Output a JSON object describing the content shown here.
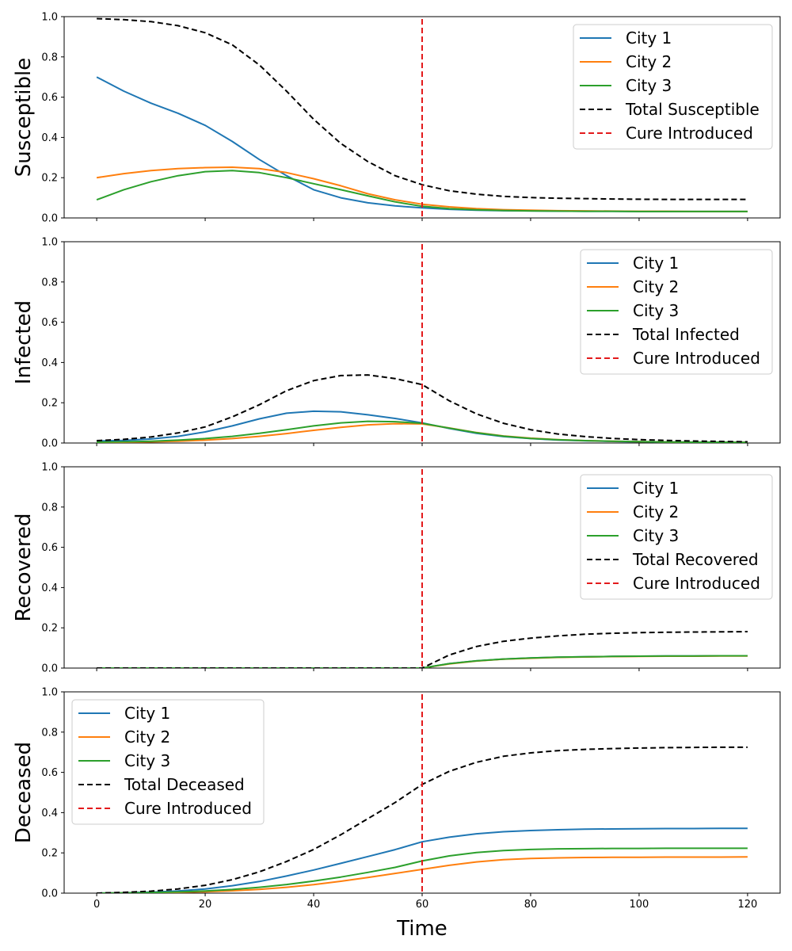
{
  "figure": {
    "xlabel": "Time"
  },
  "chart_data": [
    {
      "type": "line",
      "ylabel": "Susceptible",
      "xlim": [
        -6,
        126
      ],
      "ylim": [
        0,
        1
      ],
      "xticks": [
        0,
        20,
        40,
        60,
        80,
        100,
        120
      ],
      "yticks": [
        0.0,
        0.2,
        0.4,
        0.6,
        0.8,
        1.0
      ],
      "show_x_tick_labels": false,
      "legend_position": "top-right",
      "x": [
        0,
        5,
        10,
        15,
        20,
        25,
        30,
        35,
        40,
        45,
        50,
        55,
        60,
        65,
        70,
        75,
        80,
        85,
        90,
        95,
        100,
        105,
        110,
        115,
        120
      ],
      "series": [
        {
          "name": "City 1",
          "color": "#1f77b4",
          "dash": false,
          "values": [
            0.7,
            0.63,
            0.57,
            0.52,
            0.46,
            0.38,
            0.29,
            0.21,
            0.14,
            0.1,
            0.075,
            0.06,
            0.05,
            0.043,
            0.038,
            0.036,
            0.035,
            0.034,
            0.033,
            0.033,
            0.032,
            0.032,
            0.032,
            0.032,
            0.032
          ]
        },
        {
          "name": "City 2",
          "color": "#ff7f0e",
          "dash": false,
          "values": [
            0.2,
            0.22,
            0.235,
            0.245,
            0.25,
            0.252,
            0.245,
            0.225,
            0.195,
            0.16,
            0.12,
            0.09,
            0.068,
            0.055,
            0.046,
            0.041,
            0.038,
            0.036,
            0.035,
            0.034,
            0.033,
            0.033,
            0.032,
            0.032,
            0.032
          ]
        },
        {
          "name": "City 3",
          "color": "#2ca02c",
          "dash": false,
          "values": [
            0.09,
            0.14,
            0.18,
            0.21,
            0.23,
            0.235,
            0.225,
            0.2,
            0.17,
            0.14,
            0.11,
            0.08,
            0.058,
            0.046,
            0.04,
            0.037,
            0.035,
            0.034,
            0.033,
            0.033,
            0.032,
            0.032,
            0.032,
            0.032,
            0.032
          ]
        },
        {
          "name": "Total Susceptible",
          "color": "#000000",
          "dash": true,
          "values": [
            0.99,
            0.985,
            0.975,
            0.955,
            0.92,
            0.86,
            0.76,
            0.63,
            0.49,
            0.37,
            0.28,
            0.21,
            0.165,
            0.135,
            0.118,
            0.107,
            0.101,
            0.098,
            0.096,
            0.094,
            0.093,
            0.092,
            0.092,
            0.092,
            0.092
          ]
        },
        {
          "name": "Cure Introduced",
          "color": "#e31a1c",
          "dash": true,
          "vline_x": 60
        }
      ]
    },
    {
      "type": "line",
      "ylabel": "Infected",
      "xlim": [
        -6,
        126
      ],
      "ylim": [
        0,
        1
      ],
      "xticks": [
        0,
        20,
        40,
        60,
        80,
        100,
        120
      ],
      "yticks": [
        0.0,
        0.2,
        0.4,
        0.6,
        0.8,
        1.0
      ],
      "show_x_tick_labels": false,
      "legend_position": "top-right",
      "x": [
        0,
        5,
        10,
        15,
        20,
        25,
        30,
        35,
        40,
        45,
        50,
        55,
        60,
        65,
        70,
        75,
        80,
        85,
        90,
        95,
        100,
        105,
        110,
        115,
        120
      ],
      "series": [
        {
          "name": "City 1",
          "color": "#1f77b4",
          "dash": false,
          "values": [
            0.01,
            0.013,
            0.02,
            0.033,
            0.055,
            0.085,
            0.12,
            0.148,
            0.158,
            0.155,
            0.14,
            0.122,
            0.1,
            0.072,
            0.048,
            0.032,
            0.022,
            0.015,
            0.011,
            0.008,
            0.006,
            0.005,
            0.004,
            0.004,
            0.003
          ]
        },
        {
          "name": "City 2",
          "color": "#ff7f0e",
          "dash": false,
          "values": [
            0.003,
            0.004,
            0.006,
            0.009,
            0.014,
            0.022,
            0.033,
            0.047,
            0.063,
            0.078,
            0.09,
            0.096,
            0.095,
            0.075,
            0.052,
            0.035,
            0.024,
            0.017,
            0.012,
            0.009,
            0.007,
            0.005,
            0.004,
            0.004,
            0.003
          ]
        },
        {
          "name": "City 3",
          "color": "#2ca02c",
          "dash": false,
          "values": [
            0.004,
            0.006,
            0.009,
            0.014,
            0.022,
            0.033,
            0.048,
            0.066,
            0.085,
            0.1,
            0.108,
            0.106,
            0.098,
            0.074,
            0.051,
            0.034,
            0.023,
            0.016,
            0.012,
            0.009,
            0.007,
            0.005,
            0.004,
            0.004,
            0.003
          ]
        },
        {
          "name": "Total Infected",
          "color": "#000000",
          "dash": true,
          "values": [
            0.012,
            0.018,
            0.03,
            0.05,
            0.08,
            0.13,
            0.19,
            0.26,
            0.31,
            0.335,
            0.338,
            0.32,
            0.29,
            0.21,
            0.145,
            0.098,
            0.066,
            0.045,
            0.032,
            0.023,
            0.017,
            0.013,
            0.01,
            0.008,
            0.006
          ]
        },
        {
          "name": "Cure Introduced",
          "color": "#e31a1c",
          "dash": true,
          "vline_x": 60
        }
      ]
    },
    {
      "type": "line",
      "ylabel": "Recovered",
      "xlim": [
        -6,
        126
      ],
      "ylim": [
        0,
        1
      ],
      "xticks": [
        0,
        20,
        40,
        60,
        80,
        100,
        120
      ],
      "yticks": [
        0.0,
        0.2,
        0.4,
        0.6,
        0.8,
        1.0
      ],
      "show_x_tick_labels": false,
      "legend_position": "top-right",
      "x": [
        0,
        5,
        10,
        15,
        20,
        25,
        30,
        35,
        40,
        45,
        50,
        55,
        60,
        65,
        70,
        75,
        80,
        85,
        90,
        95,
        100,
        105,
        110,
        115,
        120
      ],
      "series": [
        {
          "name": "City 1",
          "color": "#1f77b4",
          "dash": false,
          "values": [
            0,
            0,
            0,
            0,
            0,
            0,
            0,
            0,
            0,
            0,
            0,
            0,
            0,
            0.022,
            0.036,
            0.045,
            0.05,
            0.054,
            0.056,
            0.058,
            0.059,
            0.06,
            0.06,
            0.061,
            0.061
          ]
        },
        {
          "name": "City 2",
          "color": "#ff7f0e",
          "dash": false,
          "values": [
            0,
            0,
            0,
            0,
            0,
            0,
            0,
            0,
            0,
            0,
            0,
            0,
            0,
            0.021,
            0.035,
            0.044,
            0.049,
            0.053,
            0.055,
            0.057,
            0.058,
            0.059,
            0.059,
            0.06,
            0.06
          ]
        },
        {
          "name": "City 3",
          "color": "#2ca02c",
          "dash": false,
          "values": [
            0,
            0,
            0,
            0,
            0,
            0,
            0,
            0,
            0,
            0,
            0,
            0,
            0,
            0.022,
            0.036,
            0.045,
            0.05,
            0.054,
            0.056,
            0.058,
            0.059,
            0.06,
            0.06,
            0.061,
            0.061
          ]
        },
        {
          "name": "Total Recovered",
          "color": "#000000",
          "dash": true,
          "values": [
            0,
            0,
            0,
            0,
            0,
            0,
            0,
            0,
            0,
            0,
            0,
            0,
            0,
            0.065,
            0.107,
            0.133,
            0.149,
            0.16,
            0.168,
            0.173,
            0.176,
            0.178,
            0.179,
            0.18,
            0.181
          ]
        },
        {
          "name": "Cure Introduced",
          "color": "#e31a1c",
          "dash": true,
          "vline_x": 60
        }
      ]
    },
    {
      "type": "line",
      "ylabel": "Deceased",
      "xlim": [
        -6,
        126
      ],
      "ylim": [
        0,
        1
      ],
      "xticks": [
        0,
        20,
        40,
        60,
        80,
        100,
        120
      ],
      "yticks": [
        0.0,
        0.2,
        0.4,
        0.6,
        0.8,
        1.0
      ],
      "show_x_tick_labels": true,
      "legend_position": "top-left",
      "x": [
        0,
        5,
        10,
        15,
        20,
        25,
        30,
        35,
        40,
        45,
        50,
        55,
        60,
        65,
        70,
        75,
        80,
        85,
        90,
        95,
        100,
        105,
        110,
        115,
        120
      ],
      "series": [
        {
          "name": "City 1",
          "color": "#1f77b4",
          "dash": false,
          "values": [
            0,
            0.002,
            0.005,
            0.011,
            0.021,
            0.037,
            0.058,
            0.085,
            0.115,
            0.148,
            0.182,
            0.216,
            0.255,
            0.278,
            0.295,
            0.305,
            0.311,
            0.315,
            0.318,
            0.319,
            0.32,
            0.321,
            0.321,
            0.322,
            0.322
          ]
        },
        {
          "name": "City 2",
          "color": "#ff7f0e",
          "dash": false,
          "values": [
            0,
            0.001,
            0.002,
            0.004,
            0.007,
            0.012,
            0.019,
            0.029,
            0.042,
            0.059,
            0.078,
            0.098,
            0.118,
            0.138,
            0.155,
            0.166,
            0.172,
            0.175,
            0.177,
            0.178,
            0.178,
            0.179,
            0.179,
            0.179,
            0.18
          ]
        },
        {
          "name": "City 3",
          "color": "#2ca02c",
          "dash": false,
          "values": [
            0,
            0.001,
            0.003,
            0.006,
            0.011,
            0.018,
            0.029,
            0.043,
            0.06,
            0.08,
            0.103,
            0.128,
            0.16,
            0.185,
            0.202,
            0.212,
            0.217,
            0.22,
            0.221,
            0.222,
            0.222,
            0.223,
            0.223,
            0.223,
            0.223
          ]
        },
        {
          "name": "Total Deceased",
          "color": "#000000",
          "dash": true,
          "values": [
            0,
            0.004,
            0.01,
            0.021,
            0.039,
            0.067,
            0.106,
            0.157,
            0.217,
            0.29,
            0.37,
            0.45,
            0.54,
            0.605,
            0.65,
            0.68,
            0.697,
            0.708,
            0.714,
            0.718,
            0.721,
            0.723,
            0.724,
            0.725,
            0.725
          ]
        },
        {
          "name": "Cure Introduced",
          "color": "#e31a1c",
          "dash": true,
          "vline_x": 60
        }
      ]
    }
  ]
}
